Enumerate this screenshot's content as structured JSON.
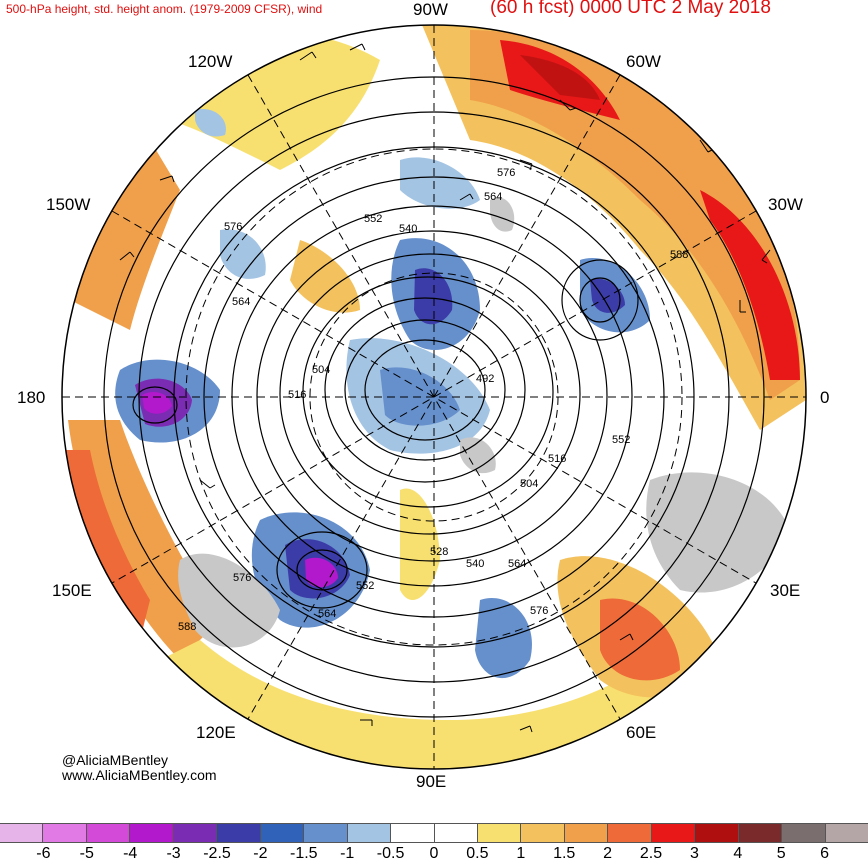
{
  "header": {
    "title_left": "500-hPa height, std. height anom. (1979-2009 CFSR), wind",
    "title_right": "(60 h fcst) 0000 UTC 2 May 2018"
  },
  "credits": {
    "line1": "@AliciaMBentley",
    "line2": "www.AliciaMBentley.com"
  },
  "longitude_labels": {
    "top": "90W",
    "upper_left": "120W",
    "upper_right": "60W",
    "left_high": "150W",
    "right_high": "30W",
    "left": "180",
    "right": "0",
    "left_low": "150E",
    "right_low": "30E",
    "lower_left": "120E",
    "lower_right": "60E",
    "bottom": "90E"
  },
  "contour_labels": [
    "576",
    "564",
    "552",
    "540",
    "576",
    "564",
    "588",
    "504",
    "516",
    "492",
    "552",
    "516",
    "504",
    "528",
    "540",
    "564",
    "576",
    "552",
    "564",
    "588",
    "576"
  ],
  "colorbar": {
    "colors": [
      "#e6b4e8",
      "#e27ae6",
      "#d34ad8",
      "#b218cc",
      "#7a2cb2",
      "#3c3ca8",
      "#2f62b8",
      "#6690cc",
      "#a4c4e4",
      "#ffffff",
      "#ffffff",
      "#f8e070",
      "#f3c25e",
      "#f0a04a",
      "#ee6a38",
      "#e81818",
      "#b00f0f",
      "#7a2a2a",
      "#7a6e6e",
      "#b4a6a6"
    ],
    "ticks": [
      "-6",
      "-5",
      "-4",
      "-3",
      "-2.5",
      "-2",
      "-1.5",
      "-1",
      "-0.5",
      "0",
      "0.5",
      "1",
      "1.5",
      "2",
      "2.5",
      "3",
      "4",
      "5",
      "6"
    ]
  }
}
